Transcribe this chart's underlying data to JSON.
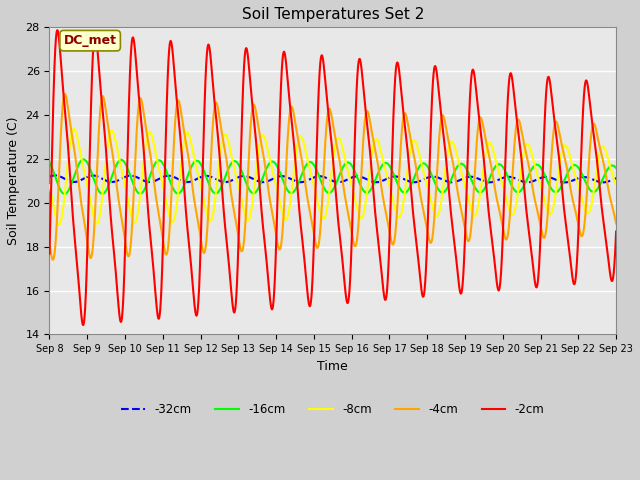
{
  "title": "Soil Temperatures Set 2",
  "xlabel": "Time",
  "ylabel": "Soil Temperature (C)",
  "ylim": [
    14,
    28
  ],
  "days": 15,
  "annotation": "DC_met",
  "fig_bg": "#d8d8d8",
  "plot_bg": "#e8e8e8",
  "legend_labels": [
    "-32cm",
    "-16cm",
    "-8cm",
    "-4cm",
    "-2cm"
  ],
  "legend_colors": [
    "blue",
    "lime",
    "yellow",
    "orange",
    "red"
  ],
  "x_tick_labels": [
    "Sep 8",
    "Sep 9",
    "Sep 10",
    "Sep 11",
    "Sep 12",
    "Sep 13",
    "Sep 14",
    "Sep 15",
    "Sep 16",
    "Sep 17",
    "Sep 18",
    "Sep 19",
    "Sep 20",
    "Sep 21",
    "Sep 22",
    "Sep 23"
  ],
  "yticks": [
    14,
    16,
    18,
    20,
    22,
    24,
    26,
    28
  ],
  "num_points": 4320,
  "mean_vals": [
    21.1,
    21.2,
    21.2,
    21.2,
    21.1
  ],
  "amp_start": [
    0.15,
    0.8,
    2.2,
    3.8,
    6.8
  ],
  "amp_end": [
    0.12,
    0.6,
    1.5,
    2.5,
    4.5
  ],
  "phase_vals": [
    0.9,
    0.65,
    0.45,
    0.25,
    0.05
  ],
  "drift_vals": [
    -0.05,
    -0.1,
    -0.15,
    -0.15,
    -0.15
  ],
  "colors": [
    "blue",
    "lime",
    "yellow",
    "orange",
    "red"
  ],
  "linestyles": [
    "--",
    "-",
    "-",
    "-",
    "-"
  ],
  "linewidths": [
    1.5,
    1.5,
    1.5,
    1.5,
    1.5
  ]
}
